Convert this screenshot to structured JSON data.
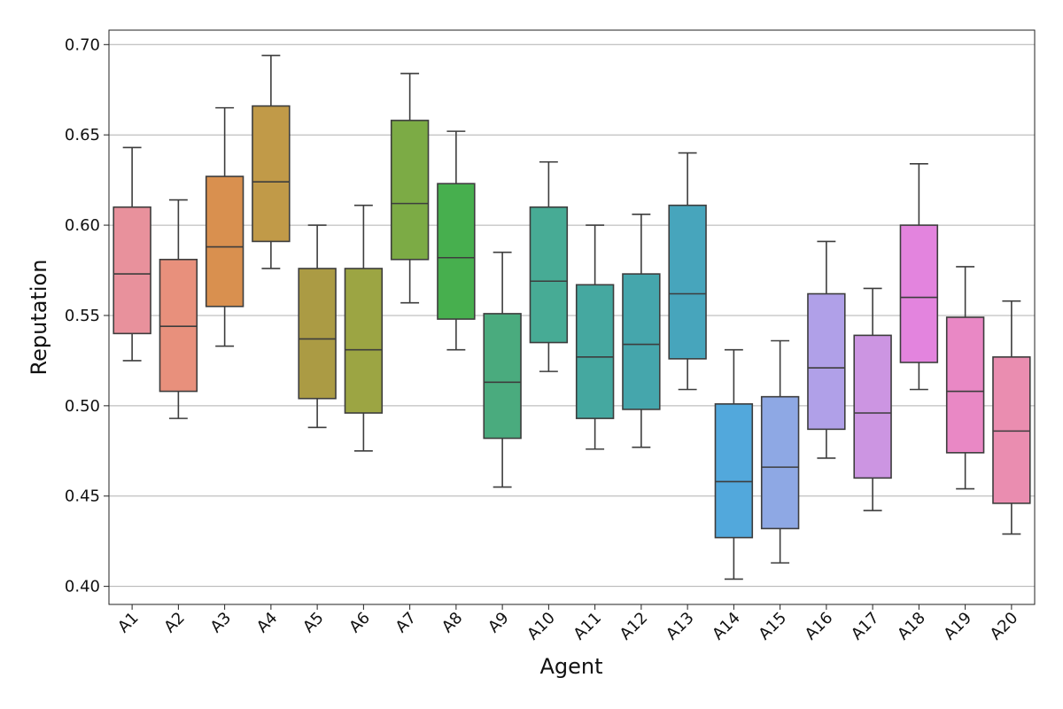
{
  "chart_data": {
    "type": "boxplot",
    "title": "",
    "xlabel": "Agent",
    "ylabel": "Reputation",
    "ylim": [
      0.39,
      0.708
    ],
    "yticks": [
      0.4,
      0.45,
      0.5,
      0.55,
      0.6,
      0.65,
      0.7
    ],
    "ytick_labels": [
      "0.40",
      "0.45",
      "0.50",
      "0.55",
      "0.60",
      "0.65",
      "0.70"
    ],
    "grid": "horizontal",
    "box_edge_color": "#3d3d3d",
    "grid_color": "#b0b0b0",
    "categories": [
      "A1",
      "A2",
      "A3",
      "A4",
      "A5",
      "A6",
      "A7",
      "A8",
      "A9",
      "A10",
      "A11",
      "A12",
      "A13",
      "A14",
      "A15",
      "A16",
      "A17",
      "A18",
      "A19",
      "A20"
    ],
    "series": [
      {
        "name": "A1",
        "color": "#e8919c",
        "whisker_low": 0.525,
        "q1": 0.54,
        "median": 0.573,
        "q3": 0.61,
        "whisker_high": 0.643
      },
      {
        "name": "A2",
        "color": "#e8907c",
        "whisker_low": 0.493,
        "q1": 0.508,
        "median": 0.544,
        "q3": 0.581,
        "whisker_high": 0.614
      },
      {
        "name": "A3",
        "color": "#d9904f",
        "whisker_low": 0.533,
        "q1": 0.555,
        "median": 0.588,
        "q3": 0.627,
        "whisker_high": 0.665
      },
      {
        "name": "A4",
        "color": "#c19a48",
        "whisker_low": 0.576,
        "q1": 0.591,
        "median": 0.624,
        "q3": 0.666,
        "whisker_high": 0.694
      },
      {
        "name": "A5",
        "color": "#ab9b44",
        "whisker_low": 0.488,
        "q1": 0.504,
        "median": 0.537,
        "q3": 0.576,
        "whisker_high": 0.6
      },
      {
        "name": "A6",
        "color": "#9ca543",
        "whisker_low": 0.475,
        "q1": 0.496,
        "median": 0.531,
        "q3": 0.576,
        "whisker_high": 0.611
      },
      {
        "name": "A7",
        "color": "#7cab45",
        "whisker_low": 0.557,
        "q1": 0.581,
        "median": 0.612,
        "q3": 0.658,
        "whisker_high": 0.684
      },
      {
        "name": "A8",
        "color": "#47af4e",
        "whisker_low": 0.531,
        "q1": 0.548,
        "median": 0.582,
        "q3": 0.623,
        "whisker_high": 0.652
      },
      {
        "name": "A9",
        "color": "#4aab7e",
        "whisker_low": 0.455,
        "q1": 0.482,
        "median": 0.513,
        "q3": 0.551,
        "whisker_high": 0.585
      },
      {
        "name": "A10",
        "color": "#47ab95",
        "whisker_low": 0.519,
        "q1": 0.535,
        "median": 0.569,
        "q3": 0.61,
        "whisker_high": 0.635
      },
      {
        "name": "A11",
        "color": "#45a8a0",
        "whisker_low": 0.476,
        "q1": 0.493,
        "median": 0.527,
        "q3": 0.567,
        "whisker_high": 0.6
      },
      {
        "name": "A12",
        "color": "#45a6ac",
        "whisker_low": 0.477,
        "q1": 0.498,
        "median": 0.534,
        "q3": 0.573,
        "whisker_high": 0.606
      },
      {
        "name": "A13",
        "color": "#47a5bc",
        "whisker_low": 0.509,
        "q1": 0.526,
        "median": 0.562,
        "q3": 0.611,
        "whisker_high": 0.64
      },
      {
        "name": "A14",
        "color": "#52a8dc",
        "whisker_low": 0.404,
        "q1": 0.427,
        "median": 0.458,
        "q3": 0.501,
        "whisker_high": 0.531
      },
      {
        "name": "A15",
        "color": "#8ea8e4",
        "whisker_low": 0.413,
        "q1": 0.432,
        "median": 0.466,
        "q3": 0.505,
        "whisker_high": 0.536
      },
      {
        "name": "A16",
        "color": "#b0a0e8",
        "whisker_low": 0.471,
        "q1": 0.487,
        "median": 0.521,
        "q3": 0.562,
        "whisker_high": 0.591
      },
      {
        "name": "A17",
        "color": "#cc95e2",
        "whisker_low": 0.442,
        "q1": 0.46,
        "median": 0.496,
        "q3": 0.539,
        "whisker_high": 0.565
      },
      {
        "name": "A18",
        "color": "#e384de",
        "whisker_low": 0.509,
        "q1": 0.524,
        "median": 0.56,
        "q3": 0.6,
        "whisker_high": 0.634
      },
      {
        "name": "A19",
        "color": "#e988c5",
        "whisker_low": 0.454,
        "q1": 0.474,
        "median": 0.508,
        "q3": 0.549,
        "whisker_high": 0.577
      },
      {
        "name": "A20",
        "color": "#ea8db0",
        "whisker_low": 0.429,
        "q1": 0.446,
        "median": 0.486,
        "q3": 0.527,
        "whisker_high": 0.558
      }
    ]
  }
}
